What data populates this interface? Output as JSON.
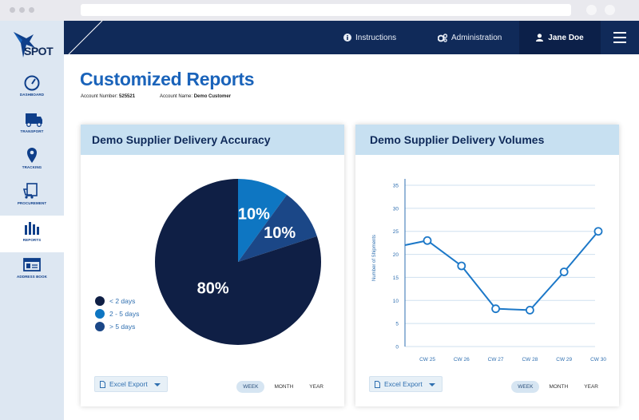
{
  "header": {
    "logo_text": "SPOT",
    "instructions_label": "Instructions",
    "administration_label": "Administration",
    "user_name": "Jane Doe"
  },
  "sidebar": {
    "items": [
      {
        "label": "DASHBOARD",
        "icon": "gauge-icon"
      },
      {
        "label": "TRANSPORT",
        "icon": "truck-icon"
      },
      {
        "label": "TRACKING",
        "icon": "map-pin-icon"
      },
      {
        "label": "PROCUREMENT",
        "icon": "cart-icon"
      },
      {
        "label": "REPORTS",
        "icon": "bar-chart-icon"
      },
      {
        "label": "ADDRESS BOOK",
        "icon": "address-card-icon"
      }
    ]
  },
  "page": {
    "title": "Customized Reports",
    "account_number_label": "Account Number:",
    "account_number": "525521",
    "account_name_label": "Account Name:",
    "account_name": "Demo Customer"
  },
  "cards": {
    "accuracy": {
      "title": "Demo Supplier Delivery Accuracy",
      "export_label": "Excel Export",
      "periods": [
        "WEEK",
        "MONTH",
        "YEAR"
      ],
      "selected_period": "WEEK"
    },
    "volumes": {
      "title": "Demo Supplier Delivery Volumes",
      "export_label": "Excel Export",
      "periods": [
        "WEEK",
        "MONTH",
        "YEAR"
      ],
      "selected_period": "WEEK"
    }
  },
  "colors": {
    "navy": "#102a59",
    "accent": "#1a63ba",
    "pie_dark": "#0f1f45",
    "pie_mid": "#1b4787",
    "pie_light": "#0e76c2",
    "line": "#1c78c8"
  },
  "chart_data": [
    {
      "type": "pie",
      "title": "Demo Supplier Delivery Accuracy",
      "slices": [
        {
          "label": "< 2 days",
          "value": 80,
          "display": "80%",
          "color": "#0f1f45"
        },
        {
          "label": "2 - 5 days",
          "value": 10,
          "display": "10%",
          "color": "#0e76c2"
        },
        {
          "label": "> 5 days",
          "value": 10,
          "display": "10%",
          "color": "#1b4787"
        }
      ],
      "legend_position": "left"
    },
    {
      "type": "line",
      "title": "Demo Supplier Delivery Volumes",
      "ylabel": "Number of Shipments",
      "xlabel": "",
      "categories": [
        "CW 25",
        "CW 26",
        "CW 27",
        "CW 28",
        "CW 29",
        "CW 30"
      ],
      "values": [
        23,
        17.5,
        8.2,
        7.9,
        16.2,
        25
      ],
      "ylim": [
        0,
        35
      ],
      "yticks": [
        0,
        5,
        10,
        15,
        20,
        25,
        30,
        35
      ],
      "grid": true
    }
  ]
}
